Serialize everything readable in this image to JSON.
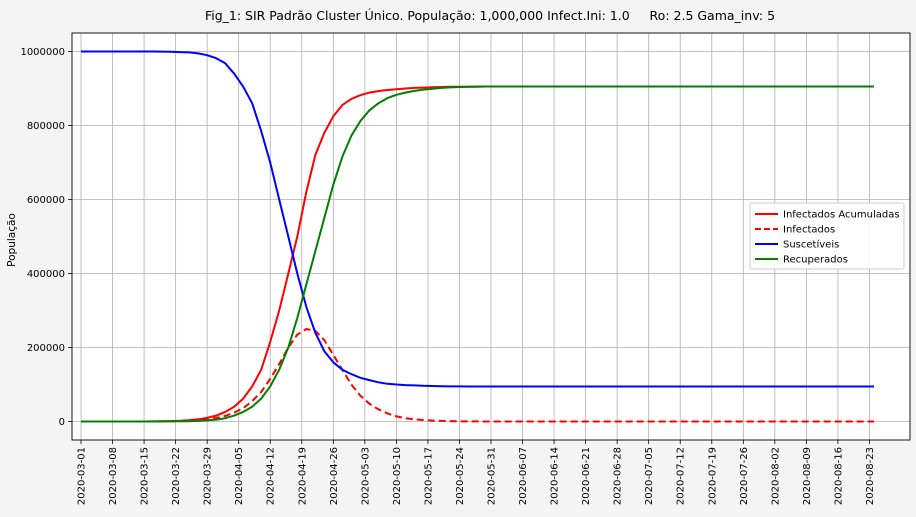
{
  "chart_data": {
    "type": "line",
    "title": "Fig_1: SIR Padrão Cluster Único. População: 1,000,000 Infect.Ini: 1.0     Ro: 2.5 Gama_inv: 5",
    "xlabel": "",
    "ylabel": "População",
    "ylim": [
      -50000,
      1050000
    ],
    "xlim": [
      "2020-02-28",
      "2020-09-01"
    ],
    "x_start": "2020-03-01",
    "x_end": "2020-08-27",
    "x_step_days": 2,
    "yticks": [
      0,
      200000,
      400000,
      600000,
      800000,
      1000000
    ],
    "ytick_labels": [
      "0",
      "200000",
      "400000",
      "600000",
      "800000",
      "1000000"
    ],
    "xticks": [
      "2020-03-01",
      "2020-03-08",
      "2020-03-15",
      "2020-03-22",
      "2020-03-29",
      "2020-04-05",
      "2020-04-12",
      "2020-04-19",
      "2020-04-26",
      "2020-05-03",
      "2020-05-10",
      "2020-05-17",
      "2020-05-24",
      "2020-05-31",
      "2020-06-07",
      "2020-06-14",
      "2020-06-21",
      "2020-06-28",
      "2020-07-05",
      "2020-07-12",
      "2020-07-19",
      "2020-07-26",
      "2020-08-02",
      "2020-08-09",
      "2020-08-16",
      "2020-08-23"
    ],
    "grid": true,
    "legend_position": "center-right",
    "series": [
      {
        "name": "Infectados Acumuladas",
        "color": "#ff0000",
        "dash": "solid",
        "values": [
          0,
          0,
          0,
          0,
          0,
          0,
          0,
          100,
          300,
          600,
          1000,
          2000,
          3500,
          6000,
          10000,
          16000,
          26000,
          40000,
          62000,
          95000,
          140000,
          215000,
          300000,
          400000,
          500000,
          620000,
          720000,
          780000,
          825000,
          855000,
          872000,
          882000,
          889000,
          893000,
          896000,
          898000,
          900000,
          901500,
          902500,
          903500,
          904000,
          904500,
          905000,
          905000,
          905500,
          905500,
          905500,
          905500,
          905500,
          905500,
          905500,
          905500,
          905500,
          905500,
          905500,
          905500,
          905500,
          905500,
          905500,
          905500,
          905500,
          905500,
          905500,
          905500,
          905500,
          905500,
          905500,
          905500,
          905500,
          905500,
          905500,
          905500,
          905500,
          905500,
          905500,
          905500,
          905500,
          905500,
          905500,
          905500,
          905500,
          905500,
          905500,
          905500,
          905500,
          905500,
          905500,
          905500,
          905500
        ]
      },
      {
        "name": "Infectados",
        "color": "#ff0000",
        "dash": "dashed",
        "values": [
          0,
          0,
          0,
          0,
          0,
          0,
          0,
          100,
          200,
          400,
          700,
          1200,
          2100,
          3500,
          6000,
          9500,
          15000,
          24000,
          36000,
          55000,
          80000,
          115000,
          155000,
          200000,
          235000,
          250000,
          245000,
          220000,
          180000,
          140000,
          100000,
          70000,
          48000,
          33000,
          22000,
          14000,
          9000,
          6000,
          4000,
          2500,
          1500,
          1000,
          600,
          400,
          200,
          100,
          0,
          0,
          0,
          0,
          0,
          0,
          0,
          0,
          0,
          0,
          0,
          0,
          0,
          0,
          0,
          0,
          0,
          0,
          0,
          0,
          0,
          0,
          0,
          0,
          0,
          0,
          0,
          0,
          0,
          0,
          0,
          0,
          0,
          0,
          0,
          0,
          0,
          0,
          0,
          0,
          0,
          0,
          0
        ]
      },
      {
        "name": "Suscetíveis",
        "color": "#0000ff",
        "dash": "solid",
        "values": [
          1000000,
          1000000,
          1000000,
          1000000,
          1000000,
          1000000,
          1000000,
          1000000,
          999900,
          999700,
          999200,
          998500,
          997500,
          995000,
          990000,
          982000,
          968000,
          940000,
          905000,
          860000,
          785000,
          700000,
          600000,
          500000,
          400000,
          310000,
          240000,
          190000,
          160000,
          140000,
          128000,
          118000,
          112000,
          106000,
          102000,
          100000,
          98500,
          97500,
          96500,
          96000,
          95500,
          95000,
          95000,
          94500,
          94500,
          94500,
          94500,
          94500,
          94500,
          94500,
          94500,
          94500,
          94500,
          94500,
          94500,
          94500,
          94500,
          94500,
          94500,
          94500,
          94500,
          94500,
          94500,
          94500,
          94500,
          94500,
          94500,
          94500,
          94500,
          94500,
          94500,
          94500,
          94500,
          94500,
          94500,
          94500,
          94500,
          94500,
          94500,
          94500,
          94500,
          94500,
          94500,
          94500,
          94500,
          94500,
          94500,
          94500,
          94500
        ]
      },
      {
        "name": "Recuperados",
        "color": "#008000",
        "dash": "solid",
        "values": [
          0,
          0,
          0,
          0,
          0,
          0,
          0,
          0,
          100,
          200,
          300,
          500,
          800,
          1500,
          3000,
          5000,
          9000,
          16000,
          26000,
          40000,
          62000,
          95000,
          140000,
          200000,
          280000,
          370000,
          460000,
          550000,
          640000,
          715000,
          772000,
          812000,
          841000,
          860000,
          874000,
          883000,
          889000,
          893500,
          897000,
          899500,
          901500,
          903000,
          904000,
          904500,
          905000,
          905500,
          905500,
          905500,
          905500,
          905500,
          905500,
          905500,
          905500,
          905500,
          905500,
          905500,
          905500,
          905500,
          905500,
          905500,
          905500,
          905500,
          905500,
          905500,
          905500,
          905500,
          905500,
          905500,
          905500,
          905500,
          905500,
          905500,
          905500,
          905500,
          905500,
          905500,
          905500,
          905500,
          905500,
          905500,
          905500,
          905500,
          905500,
          905500,
          905500,
          905500,
          905500,
          905500,
          905500
        ]
      }
    ]
  }
}
